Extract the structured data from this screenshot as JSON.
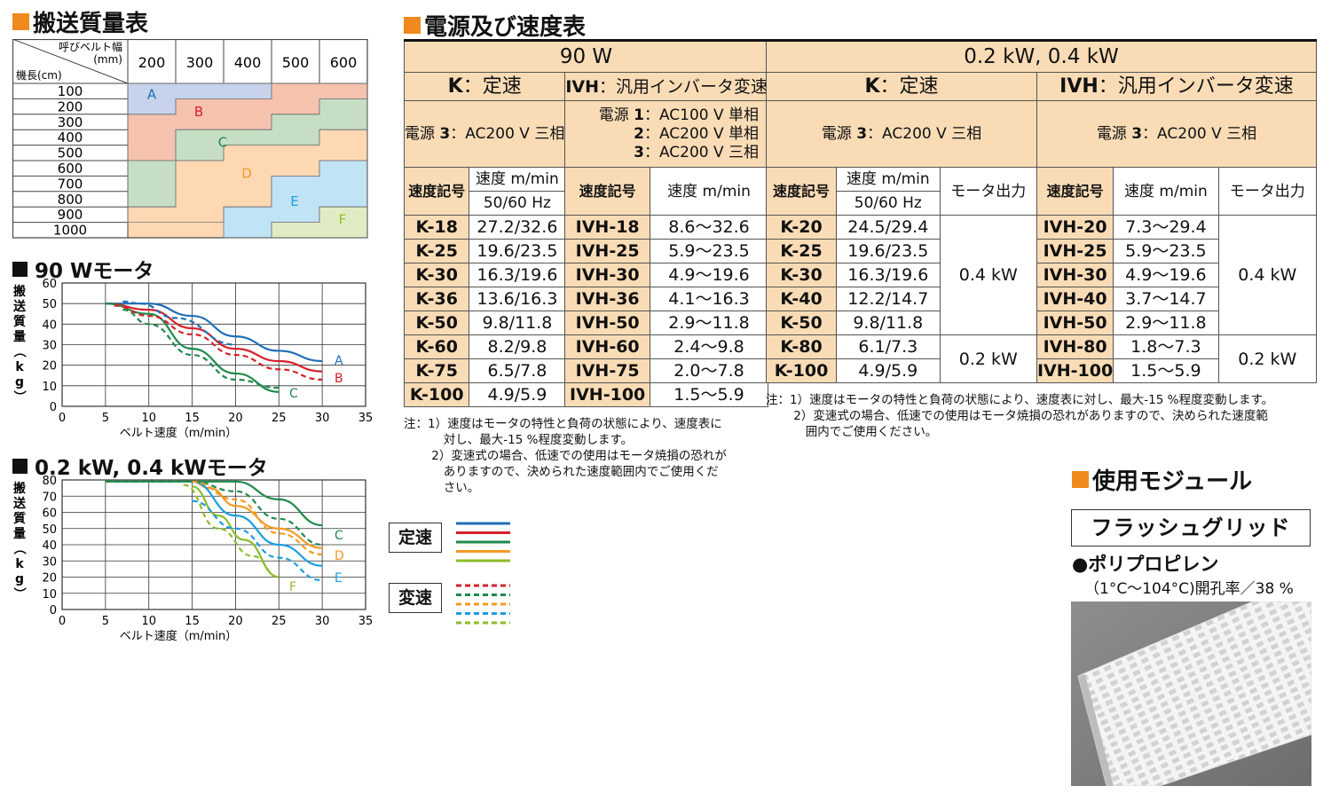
{
  "sections": {
    "mass_table_title": "搬送質量表",
    "power_title": "電源及び速度表",
    "module_title": "使用モジュール"
  },
  "mass_table": {
    "corner_top": "呼びベルト幅",
    "corner_unit": "(mm)",
    "corner_bottom": "機長(cm)",
    "widths": [
      "200",
      "300",
      "400",
      "500",
      "600"
    ],
    "lengths": [
      "100",
      "200",
      "300",
      "400",
      "500",
      "600",
      "700",
      "800",
      "900",
      "1000"
    ],
    "zones": [
      "A",
      "B",
      "C",
      "D",
      "E",
      "F"
    ],
    "zone_colors": {
      "A": "#c7d3ec",
      "B": "#f5c2ae",
      "C": "#c6dfc4",
      "D": "#fdd8b3",
      "E": "#c0e3f6",
      "F": "#e2ecc4"
    }
  },
  "charts": [
    {
      "title": "90 Wモータ",
      "chart_data": {
        "type": "line",
        "xlabel": "ベルト速度（m/min）",
        "ylabel": "搬送質量（kg）",
        "xlim": [
          0,
          35
        ],
        "ylim": [
          0,
          60
        ],
        "xticks": [
          0,
          5,
          10,
          15,
          20,
          25,
          30,
          35
        ],
        "yticks": [
          0,
          10,
          20,
          30,
          40,
          50,
          60
        ],
        "series": [
          {
            "name": "A",
            "style": "solid",
            "color": "#1f6fb8",
            "x": [
              5,
              10,
              15,
              20,
              25,
              30
            ],
            "y": [
              50,
              50,
              44,
              34,
              27,
              22
            ]
          },
          {
            "name": "B",
            "style": "solid",
            "color": "#d6202a",
            "x": [
              5,
              10,
              15,
              20,
              25,
              30
            ],
            "y": [
              50,
              47,
              38,
              28,
              22,
              17
            ]
          },
          {
            "name": "C",
            "style": "solid",
            "color": "#1e8a4c",
            "x": [
              5,
              10,
              15,
              20,
              25
            ],
            "y": [
              50,
              45,
              28,
              16,
              7
            ]
          },
          {
            "name": "A",
            "style": "dashed",
            "color": "#1f6fb8",
            "x": [
              7,
              9,
              13,
              20
            ],
            "y": [
              51,
              50,
              43,
              30
            ]
          },
          {
            "name": "B",
            "style": "dashed",
            "color": "#d6202a",
            "x": [
              6,
              10,
              15,
              20,
              25,
              30
            ],
            "y": [
              49,
              44,
              35,
              25,
              18,
              13
            ]
          },
          {
            "name": "C",
            "style": "dashed",
            "color": "#1e8a4c",
            "x": [
              7,
              10,
              15,
              20,
              25
            ],
            "y": [
              47,
              40,
              25,
              13,
              9
            ]
          }
        ]
      }
    },
    {
      "title": "0.2 kW, 0.4 kWモータ",
      "chart_data": {
        "type": "line",
        "xlabel": "ベルト速度（m/min）",
        "ylabel": "搬送質量（kg）",
        "xlim": [
          0,
          35
        ],
        "ylim": [
          0,
          80
        ],
        "xticks": [
          0,
          5,
          10,
          15,
          20,
          25,
          30,
          35
        ],
        "yticks": [
          0,
          10,
          20,
          30,
          40,
          50,
          60,
          70,
          80
        ],
        "series": [
          {
            "name": "C",
            "style": "solid",
            "color": "#1e8a4c",
            "x": [
              5,
              10,
              15,
              20,
              25,
              30
            ],
            "y": [
              79,
              79,
              79,
              79,
              68,
              52
            ]
          },
          {
            "name": "D",
            "style": "solid",
            "color": "#f39a22",
            "x": [
              15,
              17,
              20,
              25,
              30
            ],
            "y": [
              79,
              75,
              64,
              50,
              38
            ]
          },
          {
            "name": "E",
            "style": "solid",
            "color": "#1b9ee0",
            "x": [
              15,
              20,
              25,
              30
            ],
            "y": [
              79,
              58,
              40,
              27
            ]
          },
          {
            "name": "F",
            "style": "solid",
            "color": "#8cbd2a",
            "x": [
              15,
              18,
              21,
              25
            ],
            "y": [
              76,
              58,
              43,
              20
            ]
          },
          {
            "name": "C",
            "style": "dashed",
            "color": "#1e8a4c",
            "x": [
              5,
              10,
              15,
              20,
              25,
              30
            ],
            "y": [
              79,
              79,
              79,
              73,
              56,
              40
            ]
          },
          {
            "name": "D",
            "style": "dashed",
            "color": "#f39a22",
            "x": [
              15,
              20,
              25,
              30
            ],
            "y": [
              79,
              68,
              47,
              34
            ]
          },
          {
            "name": "E",
            "style": "dashed",
            "color": "#1b9ee0",
            "x": [
              15,
              20,
              25,
              30
            ],
            "y": [
              67,
              50,
              32,
              18
            ]
          },
          {
            "name": "F",
            "style": "dashed",
            "color": "#8cbd2a",
            "x": [
              14,
              18,
              22,
              25
            ],
            "y": [
              77,
              50,
              33,
              20
            ]
          }
        ]
      }
    }
  ],
  "legend": {
    "const_label": "定速",
    "var_label": "変速",
    "colors": [
      "#1f6fb8",
      "#d6202a",
      "#1e8a4c",
      "#f39a22",
      "#8cbd2a"
    ],
    "var_colors": [
      "#d6202a",
      "#1e8a4c",
      "#f39a22",
      "#1b9ee0",
      "#8cbd2a"
    ]
  },
  "table90": {
    "header": "90 W",
    "k_label": "K",
    "k_text": "：定速",
    "ivh_label": "IVH",
    "ivh_text": "：汎用インバータ変速",
    "k_power_pre": "電源 ",
    "k_power_num": "3",
    "k_power_post": "：AC200 V 三相",
    "ivh_power": [
      {
        "pre": "電源 ",
        "num": "1",
        "post": "：AC100 V 単相"
      },
      {
        "pre": "",
        "num": "2",
        "post": "：AC200 V 単相"
      },
      {
        "pre": "",
        "num": "3",
        "post": "：AC200 V 三相"
      }
    ],
    "col_code": "速度記号",
    "col_speed": "速度 m/min",
    "col_hz": "50/60 Hz",
    "rows": [
      [
        "K-18",
        "27.2/32.6",
        "IVH-18",
        "8.6～32.6"
      ],
      [
        "K-25",
        "19.6/23.5",
        "IVH-25",
        "5.9～23.5"
      ],
      [
        "K-30",
        "16.3/19.6",
        "IVH-30",
        "4.9～19.6"
      ],
      [
        "K-36",
        "13.6/16.3",
        "IVH-36",
        "4.1～16.3"
      ],
      [
        "K-50",
        "9.8/11.8",
        "IVH-50",
        "2.9～11.8"
      ],
      [
        "K-60",
        "8.2/9.8",
        "IVH-60",
        "2.4～9.8"
      ],
      [
        "K-75",
        "6.5/7.8",
        "IVH-75",
        "2.0～7.8"
      ],
      [
        "K-100",
        "4.9/5.9",
        "IVH-100",
        "1.5～5.9"
      ]
    ],
    "notes": [
      "注：1）速度はモータの特性と負荷の状態により、速度表に",
      "　　　 対し、最大-15 %程度変動します。",
      "　　 2）変速式の場合、低速での使用はモータ焼損の恐れが",
      "　　　 ありますので、決められた速度範囲内でご使用くだ",
      "　　　 さい。"
    ]
  },
  "table04": {
    "header": "0.2 kW, 0.4 kW",
    "k_label": "K",
    "k_text": "：定速",
    "ivh_label": "IVH",
    "ivh_text": "：汎用インバータ変速",
    "power_pre": "電源 ",
    "power_num": "3",
    "power_post": "：AC200 V 三相",
    "col_code": "速度記号",
    "col_speed": "速度 m/min",
    "col_hz": "50/60 Hz",
    "col_motor": "モータ出力",
    "rows": [
      [
        "K-20",
        "24.5/29.4",
        "IVH-20",
        "7.3～29.4"
      ],
      [
        "K-25",
        "19.6/23.5",
        "IVH-25",
        "5.9～23.5"
      ],
      [
        "K-30",
        "16.3/19.6",
        "IVH-30",
        "4.9～19.6"
      ],
      [
        "K-40",
        "12.2/14.7",
        "IVH-40",
        "3.7～14.7"
      ],
      [
        "K-50",
        "9.8/11.8",
        "IVH-50",
        "2.9～11.8"
      ],
      [
        "K-80",
        "6.1/7.3",
        "IVH-80",
        "1.8～7.3"
      ],
      [
        "K-100",
        "4.9/5.9",
        "IVH-100",
        "1.5～5.9"
      ]
    ],
    "motor_04": "0.4 kW",
    "motor_02": "0.2 kW",
    "notes": [
      "注：1）速度はモータの特性と負荷の状態により、速度表に対し、最大-15 %程度変動します。",
      "　　 2）変速式の場合、低速での使用はモータ焼損の恐れがありますので、決められた速度範",
      "　　　 囲内でご使用ください。"
    ]
  },
  "module": {
    "name": "フラッシュグリッド",
    "material": "●ポリプロピレン",
    "spec": "（1°C～104°C)開孔率／38 %"
  }
}
